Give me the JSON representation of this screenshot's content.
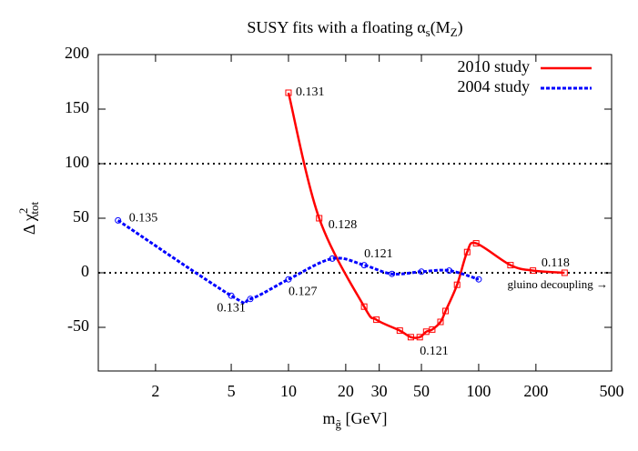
{
  "chart_data": {
    "type": "line",
    "title": [
      "SUSY fits with a floating α",
      "s",
      "(M",
      "Z",
      ")"
    ],
    "y_label": [
      "Δ χ",
      "2",
      "tot"
    ],
    "x_label": [
      "m",
      "g̃",
      " [GeV]"
    ],
    "log_x": true,
    "xlim": [
      1,
      500
    ],
    "xticks": [
      2,
      5,
      10,
      20,
      30,
      50,
      100,
      200,
      500
    ],
    "ylim": [
      -90,
      200
    ],
    "yticks": [
      200,
      150,
      100,
      50,
      0,
      -50
    ],
    "reference_lines": [
      100,
      0
    ],
    "legend": "top-right",
    "annotation": "gluino decoupling →",
    "series": [
      {
        "name": "2010 study",
        "color": "#ff0000",
        "dash": false,
        "x": [
          10,
          14.5,
          25,
          29,
          38.5,
          44,
          49,
          53,
          57,
          63,
          67,
          77,
          87,
          97,
          147,
          193,
          283
        ],
        "values": [
          165,
          50,
          -31,
          -43,
          -53,
          -59,
          -59,
          -54,
          -52,
          -45,
          -35,
          -11,
          19,
          27,
          7,
          2,
          0
        ],
        "point_labels": [
          "0.131",
          "0.128",
          null,
          null,
          null,
          null,
          "0.121",
          null,
          null,
          null,
          null,
          null,
          null,
          null,
          null,
          null,
          "0.118"
        ]
      },
      {
        "name": "2004 study",
        "color": "#0000ff",
        "dash": true,
        "x": [
          1.27,
          5,
          6.3,
          10,
          17,
          25,
          35,
          50,
          70,
          100
        ],
        "values": [
          48,
          -21,
          -24,
          -6,
          13,
          7,
          -1,
          1,
          2,
          -6
        ],
        "point_labels": [
          "0.135",
          "0.131",
          null,
          "0.127",
          null,
          "0.121",
          null,
          null,
          null,
          null
        ]
      }
    ]
  }
}
